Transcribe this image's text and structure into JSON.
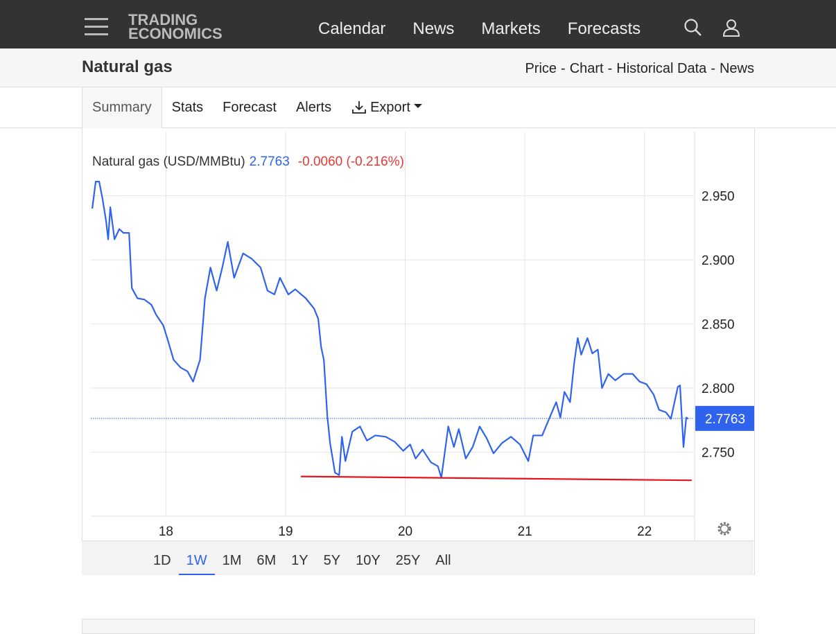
{
  "nav": {
    "logo": [
      "TRADING",
      "ECONOMICS"
    ],
    "menu": [
      "Calendar",
      "News",
      "Markets",
      "Forecasts"
    ]
  },
  "header": {
    "title": "Natural gas",
    "links": [
      "Price",
      "Chart",
      "Historical Data",
      "News"
    ]
  },
  "tabs": [
    "Summary",
    "Stats",
    "Forecast",
    "Alerts"
  ],
  "active_tab": 0,
  "export": "Export",
  "ranges": [
    "1D",
    "1W",
    "1M",
    "6M",
    "1Y",
    "5Y",
    "10Y",
    "25Y",
    "All"
  ],
  "active_range": 1,
  "chart_data": {
    "type": "line",
    "change": "-0.0060 (-0.216%)",
    "last_price": 2.7763,
    "xlim": [
      17.372,
      22.413
    ],
    "xticks": [
      18,
      19,
      20,
      21,
      22
    ],
    "ylim": [
      2.7,
      3.0
    ],
    "yticks": [
      {
        "value": 2.95,
        "label": "2.950"
      },
      {
        "value": 2.9,
        "label": "2.900"
      },
      {
        "value": 2.85,
        "label": "2.850"
      },
      {
        "value": 2.8,
        "label": "2.800"
      },
      {
        "value": 2.75,
        "label": "2.750"
      }
    ],
    "grid": true,
    "series": [
      {
        "name": "Natural gas (USD/MMBtu)",
        "color": "#2f63ee",
        "x": [
          17.384,
          17.413,
          17.442,
          17.471,
          17.5,
          17.517,
          17.535,
          17.57,
          17.61,
          17.645,
          17.692,
          17.715,
          17.762,
          17.82,
          17.878,
          17.919,
          17.977,
          18.017,
          18.064,
          18.122,
          18.18,
          18.227,
          18.285,
          18.326,
          18.372,
          18.424,
          18.471,
          18.517,
          18.57,
          18.645,
          18.715,
          18.791,
          18.849,
          18.907,
          18.953,
          19.023,
          19.081,
          19.169,
          19.238,
          19.273,
          19.297,
          19.32,
          19.349,
          19.372,
          19.413,
          19.448,
          19.471,
          19.5,
          19.558,
          19.622,
          19.68,
          19.75,
          19.837,
          19.913,
          19.983,
          20.041,
          20.087,
          20.145,
          20.215,
          20.273,
          20.302,
          20.36,
          20.407,
          20.448,
          20.506,
          20.564,
          20.622,
          20.68,
          20.738,
          20.808,
          20.884,
          20.959,
          21.029,
          21.07,
          21.145,
          21.203,
          21.262,
          21.297,
          21.331,
          21.378,
          21.413,
          21.442,
          21.471,
          21.523,
          21.564,
          21.61,
          21.645,
          21.698,
          21.756,
          21.826,
          21.901,
          21.959,
          22.017,
          22.076,
          22.122,
          22.18,
          22.221,
          22.279,
          22.297,
          22.326,
          22.349,
          22.366
        ],
        "values": [
          2.94,
          2.961,
          2.961,
          2.947,
          2.93,
          2.916,
          2.941,
          2.916,
          2.924,
          2.921,
          2.921,
          2.878,
          2.87,
          2.869,
          2.865,
          2.857,
          2.849,
          2.837,
          2.822,
          2.816,
          2.813,
          2.805,
          2.822,
          2.87,
          2.894,
          2.876,
          2.894,
          2.914,
          2.886,
          2.905,
          2.901,
          2.894,
          2.876,
          2.873,
          2.886,
          2.873,
          2.877,
          2.87,
          2.862,
          2.854,
          2.832,
          2.822,
          2.778,
          2.757,
          2.734,
          2.732,
          2.762,
          2.743,
          2.766,
          2.77,
          2.759,
          2.763,
          2.762,
          2.758,
          2.751,
          2.756,
          2.745,
          2.752,
          2.742,
          2.739,
          2.73,
          2.77,
          2.754,
          2.768,
          2.745,
          2.754,
          2.77,
          2.761,
          2.749,
          2.757,
          2.762,
          2.756,
          2.743,
          2.763,
          2.763,
          2.776,
          2.789,
          2.777,
          2.797,
          2.789,
          2.82,
          2.839,
          2.826,
          2.839,
          2.827,
          2.83,
          2.8,
          2.811,
          2.806,
          2.811,
          2.811,
          2.805,
          2.803,
          2.795,
          2.783,
          2.781,
          2.776,
          2.801,
          2.802,
          2.754,
          2.777,
          2.776
        ]
      }
    ],
    "trendline": {
      "color": "#e8141b",
      "x": [
        19.128,
        22.395
      ],
      "values": [
        2.731,
        2.728
      ]
    }
  }
}
